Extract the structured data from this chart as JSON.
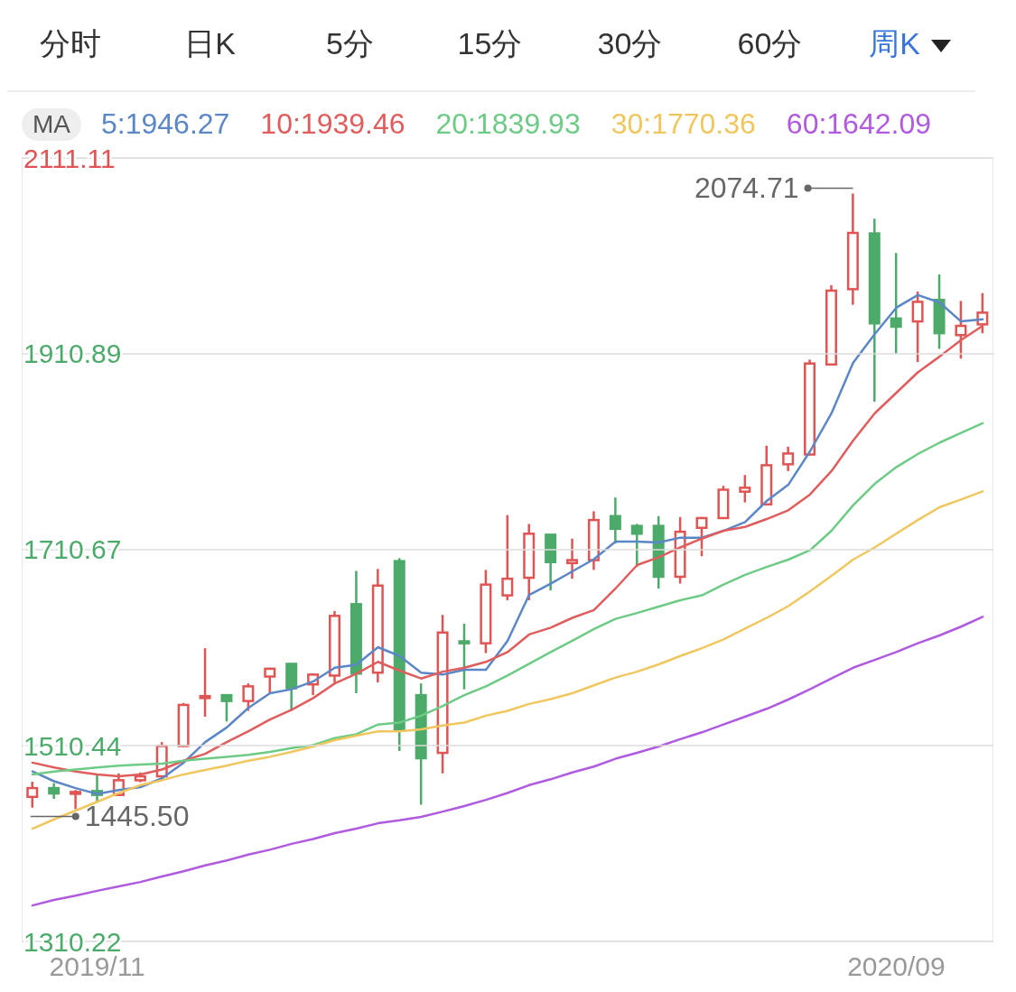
{
  "chart_data": {
    "type": "candlestick",
    "categories": [
      null,
      null,
      null,
      "2019/11",
      null,
      null,
      null,
      null,
      null,
      null,
      null,
      null,
      null,
      null,
      null,
      null,
      null,
      null,
      null,
      null,
      null,
      null,
      null,
      null,
      null,
      null,
      null,
      null,
      null,
      null,
      null,
      null,
      null,
      null,
      null,
      null,
      null,
      null,
      null,
      null,
      "2020/09",
      null,
      null,
      null,
      null
    ],
    "ohlc": [
      [
        1458,
        1473.5,
        1447,
        1467
      ],
      [
        1467,
        1472,
        1456,
        1461.5
      ],
      [
        1462,
        1465,
        1445.5,
        1463
      ],
      [
        1464,
        1481,
        1453,
        1460
      ],
      [
        1460,
        1482,
        1459,
        1475
      ],
      [
        1475,
        1483,
        1473,
        1479
      ],
      [
        1479,
        1514,
        1477,
        1510
      ],
      [
        1510,
        1554,
        1509,
        1552
      ],
      [
        1559,
        1610,
        1540,
        1561
      ],
      [
        1562,
        1562,
        1535,
        1556
      ],
      [
        1556,
        1574,
        1546,
        1571
      ],
      [
        1581,
        1590,
        1564,
        1589
      ],
      [
        1594,
        1594,
        1546,
        1569
      ],
      [
        1573,
        1584,
        1562,
        1583
      ],
      [
        1582,
        1648,
        1575,
        1643
      ],
      [
        1655,
        1689,
        1564,
        1584
      ],
      [
        1585,
        1691,
        1575,
        1674
      ],
      [
        1699,
        1702,
        1505,
        1527
      ],
      [
        1562,
        1574,
        1450,
        1497.5
      ],
      [
        1503,
        1644,
        1482,
        1626
      ],
      [
        1617,
        1635,
        1568,
        1615
      ],
      [
        1615,
        1690,
        1605,
        1675
      ],
      [
        1664,
        1746,
        1659,
        1681
      ],
      [
        1682,
        1737,
        1659,
        1727
      ],
      [
        1726,
        1726,
        1669,
        1698
      ],
      [
        1697,
        1722,
        1681,
        1700
      ],
      [
        1700,
        1750,
        1690,
        1741
      ],
      [
        1745,
        1764,
        1717,
        1732
      ],
      [
        1735,
        1737,
        1693,
        1727
      ],
      [
        1735,
        1745,
        1671,
        1683
      ],
      [
        1683,
        1744,
        1676,
        1729
      ],
      [
        1733,
        1744,
        1704,
        1743
      ],
      [
        1743,
        1776,
        1742,
        1772
      ],
      [
        1770,
        1787,
        1759,
        1774
      ],
      [
        1757,
        1817,
        1756,
        1797
      ],
      [
        1798,
        1816,
        1791,
        1809
      ],
      [
        1808,
        1905,
        1807,
        1901
      ],
      [
        1900,
        1981,
        1899,
        1975.5
      ],
      [
        1977,
        2074.71,
        1961,
        2034.5
      ],
      [
        2034,
        2049,
        1862,
        1942
      ],
      [
        1947,
        2014,
        1911,
        1938.6
      ],
      [
        1944,
        1974.5,
        1902.6,
        1964
      ],
      [
        1966,
        1992,
        1916,
        1932
      ],
      [
        1930,
        1965,
        1906,
        1939.5
      ],
      [
        1941,
        1973,
        1932,
        1953
      ]
    ],
    "colors": [
      "#e05454",
      "#4caa6a",
      "#e05454",
      "#4caa6a",
      "#e05454",
      "#e05454",
      "#e05454",
      "#e05454",
      "#e05454",
      "#4caa6a",
      "#e05454",
      "#e05454",
      "#4caa6a",
      "#e05454",
      "#e05454",
      "#4caa6a",
      "#e05454",
      "#4caa6a",
      "#4caa6a",
      "#e05454",
      "#4caa6a",
      "#e05454",
      "#e05454",
      "#e05454",
      "#4caa6a",
      "#e05454",
      "#e05454",
      "#4caa6a",
      "#4caa6a",
      "#4caa6a",
      "#e05454",
      "#e05454",
      "#e05454",
      "#e05454",
      "#e05454",
      "#e05454",
      "#e05454",
      "#e05454",
      "#e05454",
      "#4caa6a",
      "#4caa6a",
      "#e05454",
      "#4caa6a",
      "#e05454",
      "#e05454"
    ],
    "series": [
      {
        "type": "line",
        "name": "5:1946.27",
        "color": "#5b87c7",
        "values": [
          1484,
          1474,
          1467,
          1461,
          1465,
          1468,
          1477,
          1493,
          1514,
          1529,
          1549,
          1564,
          1568,
          1576,
          1590,
          1593,
          1611,
          1602,
          1585,
          1583,
          1588,
          1588,
          1617.5,
          1664.5,
          1676,
          1688.5,
          1701,
          1719,
          1719,
          1718,
          1723,
          1723,
          1730,
          1739,
          1760.5,
          1777,
          1811,
          1850,
          1901.6,
          1931,
          1958,
          1971,
          1963.5,
          1944,
          1946.27
        ]
      },
      {
        "type": "line",
        "name": "10:1939.46",
        "color": "#e05d5d",
        "values": [
          1493,
          1488,
          1484,
          1481,
          1479,
          1481,
          1486,
          1495,
          1502,
          1514,
          1525,
          1537,
          1547,
          1559,
          1574,
          1584,
          1596,
          1587,
          1579,
          1586,
          1590,
          1596,
          1606,
          1624,
          1631,
          1641,
          1649,
          1671,
          1695,
          1703,
          1713,
          1722,
          1730,
          1734,
          1742,
          1751,
          1767,
          1791,
          1822,
          1850,
          1871,
          1892,
          1908,
          1925,
          1939.46
        ]
      },
      {
        "type": "line",
        "name": "20:1839.93",
        "color": "#6dcb86",
        "values": [
          1481,
          1484,
          1486,
          1488,
          1490,
          1491,
          1492,
          1495,
          1497,
          1499,
          1501,
          1504,
          1508,
          1511,
          1518,
          1522,
          1532,
          1534,
          1541,
          1551,
          1562,
          1571,
          1582,
          1594,
          1606,
          1617.5,
          1629.5,
          1640,
          1646,
          1652.5,
          1659,
          1664,
          1675,
          1685,
          1693,
          1700.5,
          1710,
          1730,
          1756,
          1778,
          1795,
          1808.5,
          1820,
          1830,
          1839.93
        ]
      },
      {
        "type": "line",
        "name": "30:1770.36",
        "color": "#f0c75e",
        "values": [
          1425.5,
          1435,
          1444,
          1453,
          1462,
          1470,
          1475,
          1481,
          1485.5,
          1490,
          1495,
          1499,
          1504,
          1509.5,
          1516,
          1520.6,
          1525,
          1525,
          1527,
          1531,
          1534,
          1541,
          1546,
          1553,
          1558,
          1564,
          1572,
          1580,
          1586,
          1593.5,
          1602,
          1610,
          1619,
          1630,
          1641,
          1653,
          1668,
          1684,
          1700.5,
          1713,
          1727,
          1741,
          1754,
          1762,
          1770.36
        ]
      },
      {
        "type": "line",
        "name": "60:1642.09",
        "color": "#b05ae0",
        "values": [
          1347,
          1352.6,
          1357,
          1362,
          1366.5,
          1371,
          1376.6,
          1382,
          1388,
          1393,
          1399,
          1404,
          1410,
          1415,
          1421,
          1425.5,
          1431,
          1434,
          1437.5,
          1443,
          1448.6,
          1455,
          1462,
          1470,
          1476,
          1483,
          1489,
          1497,
          1503,
          1509.5,
          1517,
          1524,
          1532,
          1540,
          1548,
          1557.5,
          1568,
          1579,
          1590,
          1598,
          1606,
          1615,
          1623,
          1632,
          1642.09
        ]
      }
    ],
    "ylim": [
      1310.22,
      2111.11
    ],
    "yticks": [
      2111.11,
      1910.89,
      1710.67,
      1510.44,
      1310.22
    ],
    "grid": "y",
    "legend": "top",
    "legend_title": "MA",
    "annotations": [
      "分时",
      "日K",
      "5分",
      "15分",
      "30分",
      "60分",
      "周K",
      "2074.71",
      "1445.50"
    ]
  }
}
